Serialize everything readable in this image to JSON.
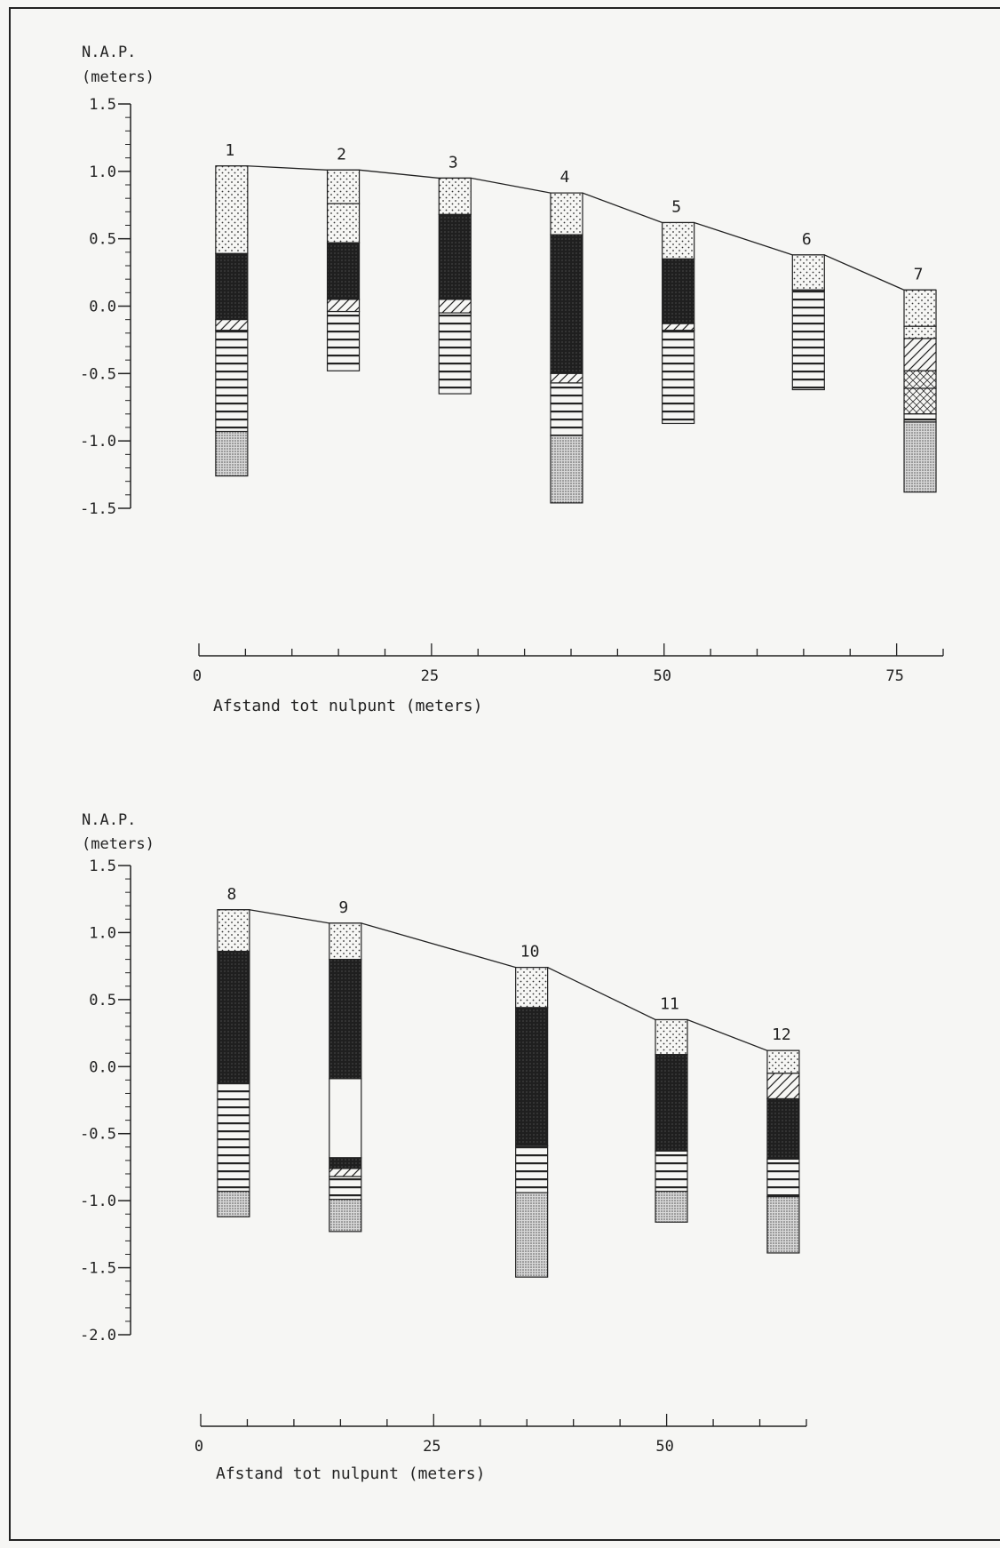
{
  "chart_data": [
    {
      "type": "stratigraphic-column",
      "ylabel": [
        "N.A.P.",
        "(meters)"
      ],
      "xlabel": "Afstand tot nulpunt (meters)",
      "ylim": [
        -1.5,
        1.5
      ],
      "yticks": [
        "1.5",
        "1.0",
        "0.5",
        "0.0",
        "-0.5",
        "-1.0",
        "-1.5"
      ],
      "xlim": [
        0,
        80
      ],
      "xticks": [
        "0",
        "25",
        "50",
        "75"
      ],
      "columns": [
        {
          "label": "1",
          "x": 1.8,
          "layers": [
            {
              "top": 1.04,
              "bottom": 0.39,
              "fill": "dots"
            },
            {
              "top": 0.39,
              "bottom": -0.1,
              "fill": "dark"
            },
            {
              "top": -0.1,
              "bottom": -0.18,
              "fill": "diag"
            },
            {
              "top": -0.18,
              "bottom": -0.93,
              "fill": "horiz"
            },
            {
              "top": -0.93,
              "bottom": -1.26,
              "fill": "stipple"
            }
          ]
        },
        {
          "label": "2",
          "x": 13.8,
          "layers": [
            {
              "top": 1.01,
              "bottom": 0.76,
              "fill": "dots"
            },
            {
              "top": 0.76,
              "bottom": 0.47,
              "fill": "dots"
            },
            {
              "top": 0.47,
              "bottom": 0.05,
              "fill": "dark"
            },
            {
              "top": 0.05,
              "bottom": -0.04,
              "fill": "diag"
            },
            {
              "top": -0.04,
              "bottom": -0.48,
              "fill": "horiz"
            }
          ]
        },
        {
          "label": "3",
          "x": 25.8,
          "layers": [
            {
              "top": 0.95,
              "bottom": 0.68,
              "fill": "dots"
            },
            {
              "top": 0.68,
              "bottom": 0.05,
              "fill": "dark"
            },
            {
              "top": 0.05,
              "bottom": -0.05,
              "fill": "diag"
            },
            {
              "top": -0.05,
              "bottom": -0.65,
              "fill": "horiz"
            }
          ]
        },
        {
          "label": "4",
          "x": 37.8,
          "layers": [
            {
              "top": 0.84,
              "bottom": 0.53,
              "fill": "dots"
            },
            {
              "top": 0.53,
              "bottom": -0.5,
              "fill": "dark"
            },
            {
              "top": -0.5,
              "bottom": -0.57,
              "fill": "diag"
            },
            {
              "top": -0.57,
              "bottom": -0.96,
              "fill": "horiz"
            },
            {
              "top": -0.96,
              "bottom": -1.46,
              "fill": "stipple"
            }
          ]
        },
        {
          "label": "5",
          "x": 49.8,
          "layers": [
            {
              "top": 0.62,
              "bottom": 0.35,
              "fill": "dots"
            },
            {
              "top": 0.35,
              "bottom": -0.13,
              "fill": "dark"
            },
            {
              "top": -0.13,
              "bottom": -0.18,
              "fill": "diag"
            },
            {
              "top": -0.18,
              "bottom": -0.87,
              "fill": "horiz"
            }
          ]
        },
        {
          "label": "6",
          "x": 63.8,
          "layers": [
            {
              "top": 0.38,
              "bottom": 0.12,
              "fill": "dots"
            },
            {
              "top": 0.12,
              "bottom": -0.62,
              "fill": "horiz"
            }
          ]
        },
        {
          "label": "7",
          "x": 75.8,
          "layers": [
            {
              "top": 0.12,
              "bottom": -0.15,
              "fill": "dots"
            },
            {
              "top": -0.15,
              "bottom": -0.24,
              "fill": "dots"
            },
            {
              "top": -0.24,
              "bottom": -0.48,
              "fill": "diag"
            },
            {
              "top": -0.48,
              "bottom": -0.61,
              "fill": "cross"
            },
            {
              "top": -0.61,
              "bottom": -0.8,
              "fill": "cross"
            },
            {
              "top": -0.8,
              "bottom": -0.86,
              "fill": "horiz"
            },
            {
              "top": -0.86,
              "bottom": -1.38,
              "fill": "stipple"
            }
          ]
        }
      ]
    },
    {
      "type": "stratigraphic-column",
      "ylabel": [
        "N.A.P.",
        "(meters)"
      ],
      "xlabel": "Afstand tot nulpunt (meters)",
      "ylim": [
        -2.0,
        1.5
      ],
      "yticks": [
        "1.5",
        "1.0",
        "0.5",
        "0.0",
        "-0.5",
        "-1.0",
        "-1.5",
        "-2.0"
      ],
      "xlim": [
        0,
        65
      ],
      "xticks": [
        "0",
        "25",
        "50"
      ],
      "columns": [
        {
          "label": "8",
          "x": 1.8,
          "layers": [
            {
              "top": 1.17,
              "bottom": 0.86,
              "fill": "dots"
            },
            {
              "top": 0.86,
              "bottom": -0.12,
              "fill": "dark"
            },
            {
              "top": -0.12,
              "bottom": -0.93,
              "fill": "horiz"
            },
            {
              "top": -0.93,
              "bottom": -1.12,
              "fill": "stipple"
            }
          ]
        },
        {
          "label": "9",
          "x": 13.8,
          "layers": [
            {
              "top": 1.07,
              "bottom": 0.8,
              "fill": "dots"
            },
            {
              "top": 0.8,
              "bottom": -0.09,
              "fill": "dark"
            },
            {
              "top": -0.09,
              "bottom": -0.68,
              "fill": "blank"
            },
            {
              "top": -0.68,
              "bottom": -0.76,
              "fill": "dark"
            },
            {
              "top": -0.76,
              "bottom": -0.82,
              "fill": "diag"
            },
            {
              "top": -0.82,
              "bottom": -0.99,
              "fill": "horiz"
            },
            {
              "top": -0.99,
              "bottom": -1.23,
              "fill": "stipple"
            }
          ]
        },
        {
          "label": "10",
          "x": 33.8,
          "layers": [
            {
              "top": 0.74,
              "bottom": 0.44,
              "fill": "dots"
            },
            {
              "top": 0.44,
              "bottom": -0.59,
              "fill": "dark"
            },
            {
              "top": -0.59,
              "bottom": -0.94,
              "fill": "horiz"
            },
            {
              "top": -0.94,
              "bottom": -1.57,
              "fill": "stipple"
            }
          ]
        },
        {
          "label": "11",
          "x": 48.8,
          "layers": [
            {
              "top": 0.35,
              "bottom": 0.09,
              "fill": "dots"
            },
            {
              "top": 0.09,
              "bottom": -0.63,
              "fill": "dark"
            },
            {
              "top": -0.63,
              "bottom": -0.93,
              "fill": "horiz"
            },
            {
              "top": -0.93,
              "bottom": -1.16,
              "fill": "stipple"
            }
          ]
        },
        {
          "label": "12",
          "x": 60.8,
          "layers": [
            {
              "top": 0.12,
              "bottom": -0.05,
              "fill": "dots"
            },
            {
              "top": -0.05,
              "bottom": -0.24,
              "fill": "diag"
            },
            {
              "top": -0.24,
              "bottom": -0.69,
              "fill": "dark"
            },
            {
              "top": -0.69,
              "bottom": -0.97,
              "fill": "horiz"
            },
            {
              "top": -0.97,
              "bottom": -1.39,
              "fill": "stipple"
            }
          ]
        }
      ]
    }
  ]
}
